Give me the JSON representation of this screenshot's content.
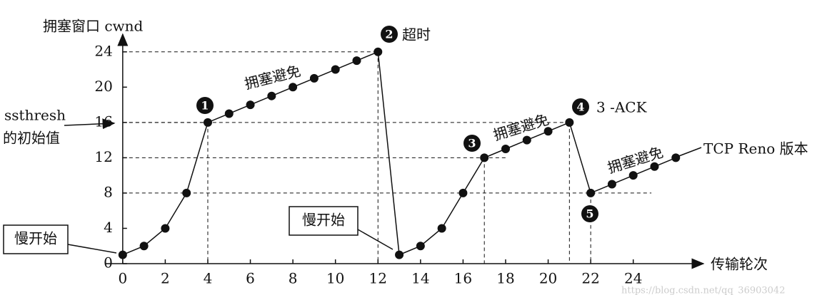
{
  "chart_data": {
    "type": "line",
    "y_label": "拥塞窗口 cwnd",
    "x_label": "传输轮次",
    "x": [
      0,
      1,
      2,
      3,
      4,
      5,
      6,
      7,
      8,
      9,
      10,
      11,
      12,
      13,
      14,
      15,
      16,
      17,
      18,
      19,
      20,
      21,
      22,
      23,
      24,
      25,
      26
    ],
    "series": [
      {
        "color": "#111111",
        "values": [
          1,
          2,
          4,
          8,
          16,
          17,
          18,
          19,
          20,
          21,
          22,
          23,
          24,
          1,
          2,
          4,
          8,
          12,
          13,
          14,
          15,
          16,
          8,
          9,
          10,
          11,
          12
        ]
      }
    ],
    "xlim": [
      -0.8,
      27.3
    ],
    "ylim": [
      0,
      26
    ],
    "xticks": [
      0,
      2,
      4,
      6,
      8,
      10,
      12,
      14,
      16,
      18,
      20,
      22,
      24
    ],
    "yticks": [
      0,
      4,
      8,
      12,
      16,
      20,
      24
    ],
    "markers": [
      "1",
      "2",
      "3",
      "4",
      "5"
    ],
    "timeout_label": "超时",
    "triple_ack_label": "3 -ACK",
    "ssthresh_label": [
      "ssthresh",
      "的初始值"
    ],
    "congestion_avoidance_labels": [
      "拥塞避免",
      "拥塞避免",
      "拥塞避免"
    ],
    "slow_start_labels": [
      "慢开始",
      "慢开始"
    ],
    "version_label": "TCP Reno 版本",
    "watermark": "https://blog.csdn.net/qq_36903042"
  }
}
